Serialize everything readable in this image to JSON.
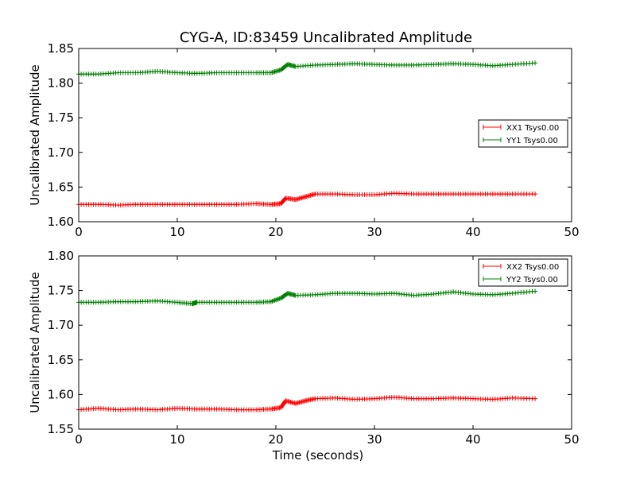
{
  "figure": {
    "title": "CYG-A, ID:83459 Uncalibrated Amplitude"
  },
  "chart_data": [
    {
      "type": "line",
      "title": "CYG-A, ID:83459 Uncalibrated Amplitude",
      "xlabel": "",
      "ylabel": "Uncalibrated Amplitude",
      "xlim": [
        0,
        50
      ],
      "ylim": [
        1.6,
        1.85
      ],
      "xticks": [
        "0",
        "10",
        "20",
        "30",
        "40",
        "50"
      ],
      "yticks": [
        "1.60",
        "1.65",
        "1.70",
        "1.75",
        "1.80",
        "1.85"
      ],
      "grid": false,
      "legend_position": "center-right",
      "series": [
        {
          "name": "XX1 Tsys0.00",
          "color": "#ff0000",
          "marker": "plus",
          "points": [
            [
              0.0,
              1.625
            ],
            [
              2.0,
              1.625
            ],
            [
              4.0,
              1.624
            ],
            [
              6.0,
              1.625
            ],
            [
              8.0,
              1.625
            ],
            [
              10.0,
              1.625
            ],
            [
              12.0,
              1.625
            ],
            [
              14.0,
              1.625
            ],
            [
              16.0,
              1.625
            ],
            [
              18.0,
              1.626
            ],
            [
              19.5,
              1.625
            ],
            [
              20.5,
              1.626
            ],
            [
              21.0,
              1.634
            ],
            [
              22.0,
              1.632
            ],
            [
              23.0,
              1.636
            ],
            [
              24.0,
              1.64
            ],
            [
              26.0,
              1.64
            ],
            [
              28.0,
              1.639
            ],
            [
              30.0,
              1.639
            ],
            [
              32.0,
              1.641
            ],
            [
              34.0,
              1.64
            ],
            [
              36.0,
              1.64
            ],
            [
              38.0,
              1.64
            ],
            [
              40.0,
              1.64
            ],
            [
              42.0,
              1.64
            ],
            [
              44.0,
              1.64
            ],
            [
              46.3,
              1.64
            ]
          ]
        },
        {
          "name": "YY1 Tsys0.00",
          "color": "#008000",
          "marker": "plus",
          "points": [
            [
              0.0,
              1.813
            ],
            [
              2.0,
              1.813
            ],
            [
              4.0,
              1.815
            ],
            [
              6.0,
              1.815
            ],
            [
              8.0,
              1.817
            ],
            [
              10.0,
              1.815
            ],
            [
              12.0,
              1.814
            ],
            [
              14.0,
              1.815
            ],
            [
              16.0,
              1.815
            ],
            [
              18.0,
              1.815
            ],
            [
              19.5,
              1.815
            ],
            [
              20.5,
              1.819
            ],
            [
              21.2,
              1.827
            ],
            [
              22.0,
              1.824
            ],
            [
              24.0,
              1.826
            ],
            [
              26.0,
              1.827
            ],
            [
              28.0,
              1.828
            ],
            [
              30.0,
              1.827
            ],
            [
              32.0,
              1.826
            ],
            [
              34.0,
              1.826
            ],
            [
              36.0,
              1.827
            ],
            [
              38.0,
              1.828
            ],
            [
              40.0,
              1.827
            ],
            [
              42.0,
              1.825
            ],
            [
              44.0,
              1.827
            ],
            [
              46.3,
              1.829
            ]
          ]
        }
      ]
    },
    {
      "type": "line",
      "title": "",
      "xlabel": "Time (seconds)",
      "ylabel": "Uncalibrated Amplitude",
      "xlim": [
        0,
        50
      ],
      "ylim": [
        1.55,
        1.8
      ],
      "xticks": [
        "0",
        "10",
        "20",
        "30",
        "40",
        "50"
      ],
      "yticks": [
        "1.55",
        "1.60",
        "1.65",
        "1.70",
        "1.75",
        "1.80"
      ],
      "grid": false,
      "legend_position": "top-right",
      "series": [
        {
          "name": "XX2 Tsys0.00",
          "color": "#ff0000",
          "marker": "plus",
          "points": [
            [
              0.0,
              1.578
            ],
            [
              2.0,
              1.58
            ],
            [
              4.0,
              1.578
            ],
            [
              6.0,
              1.579
            ],
            [
              8.0,
              1.578
            ],
            [
              10.0,
              1.58
            ],
            [
              12.0,
              1.579
            ],
            [
              14.0,
              1.579
            ],
            [
              16.0,
              1.578
            ],
            [
              18.0,
              1.578
            ],
            [
              19.5,
              1.579
            ],
            [
              20.5,
              1.581
            ],
            [
              21.0,
              1.591
            ],
            [
              22.0,
              1.587
            ],
            [
              23.0,
              1.591
            ],
            [
              24.0,
              1.594
            ],
            [
              26.0,
              1.595
            ],
            [
              28.0,
              1.593
            ],
            [
              30.0,
              1.594
            ],
            [
              32.0,
              1.596
            ],
            [
              34.0,
              1.594
            ],
            [
              36.0,
              1.594
            ],
            [
              38.0,
              1.595
            ],
            [
              40.0,
              1.594
            ],
            [
              42.0,
              1.593
            ],
            [
              44.0,
              1.595
            ],
            [
              46.3,
              1.594
            ]
          ]
        },
        {
          "name": "YY2 Tsys0.00",
          "color": "#008000",
          "marker": "plus",
          "points": [
            [
              0.0,
              1.733
            ],
            [
              2.0,
              1.733
            ],
            [
              4.0,
              1.734
            ],
            [
              6.0,
              1.734
            ],
            [
              8.0,
              1.735
            ],
            [
              10.0,
              1.733
            ],
            [
              11.5,
              1.731
            ],
            [
              12.0,
              1.733
            ],
            [
              14.0,
              1.733
            ],
            [
              16.0,
              1.733
            ],
            [
              18.0,
              1.733
            ],
            [
              19.5,
              1.734
            ],
            [
              20.5,
              1.739
            ],
            [
              21.2,
              1.746
            ],
            [
              22.0,
              1.743
            ],
            [
              24.0,
              1.744
            ],
            [
              26.0,
              1.746
            ],
            [
              28.0,
              1.746
            ],
            [
              30.0,
              1.745
            ],
            [
              32.0,
              1.746
            ],
            [
              34.0,
              1.743
            ],
            [
              36.0,
              1.745
            ],
            [
              38.0,
              1.748
            ],
            [
              40.0,
              1.745
            ],
            [
              42.0,
              1.744
            ],
            [
              44.0,
              1.746
            ],
            [
              46.3,
              1.749
            ]
          ]
        }
      ]
    }
  ]
}
